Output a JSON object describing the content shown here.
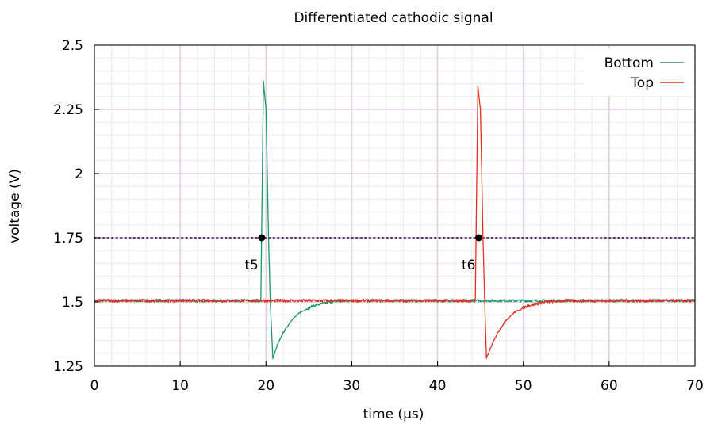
{
  "chart_data": {
    "type": "line",
    "title": "Differentiated cathodic signal",
    "xlabel": "time (µs)",
    "ylabel": "voltage (V)",
    "xlim": [
      0,
      70
    ],
    "ylim": [
      1.25,
      2.5
    ],
    "x_ticks": [
      0,
      10,
      20,
      30,
      40,
      50,
      60,
      70
    ],
    "x_tick_labels": [
      "0",
      "10",
      "20",
      "30",
      "40",
      "50",
      "60",
      "70"
    ],
    "y_ticks": [
      1.25,
      1.5,
      1.75,
      2,
      2.25,
      2.5
    ],
    "y_tick_labels": [
      "1.25",
      "1.5",
      "1.75",
      "2",
      "2.25",
      "2.5"
    ],
    "x_minor_step": 2,
    "y_minor_step": 0.05,
    "grid": true,
    "legend_position": "top-right",
    "threshold": {
      "y": 1.75,
      "color": "#5a3f6e"
    },
    "series": [
      {
        "name": "Bottom",
        "color": "#1a9a6a",
        "baseline": 1.505,
        "noise": 0.005,
        "points": [
          [
            0,
            1.505
          ],
          [
            19.4,
            1.505
          ],
          [
            19.7,
            2.36
          ],
          [
            20.0,
            2.25
          ],
          [
            20.3,
            1.75
          ],
          [
            20.5,
            1.5
          ],
          [
            20.8,
            1.28
          ],
          [
            21.3,
            1.33
          ],
          [
            22.0,
            1.38
          ],
          [
            23.0,
            1.43
          ],
          [
            24.0,
            1.46
          ],
          [
            25.5,
            1.485
          ],
          [
            27.5,
            1.5
          ],
          [
            30.0,
            1.505
          ],
          [
            70,
            1.505
          ]
        ]
      },
      {
        "name": "Top",
        "color": "#e03020",
        "baseline": 1.505,
        "noise": 0.006,
        "points": [
          [
            0,
            1.505
          ],
          [
            44.4,
            1.505
          ],
          [
            44.7,
            2.34
          ],
          [
            45.0,
            2.25
          ],
          [
            45.3,
            1.75
          ],
          [
            45.5,
            1.5
          ],
          [
            45.7,
            1.28
          ],
          [
            46.3,
            1.33
          ],
          [
            47.0,
            1.38
          ],
          [
            48.0,
            1.43
          ],
          [
            49.0,
            1.46
          ],
          [
            50.5,
            1.485
          ],
          [
            52.5,
            1.5
          ],
          [
            55.0,
            1.505
          ],
          [
            70,
            1.505
          ]
        ]
      }
    ],
    "annotations": [
      {
        "label": "t5",
        "x": 19.5,
        "y": 1.75
      },
      {
        "label": "t6",
        "x": 44.8,
        "y": 1.75
      }
    ]
  }
}
